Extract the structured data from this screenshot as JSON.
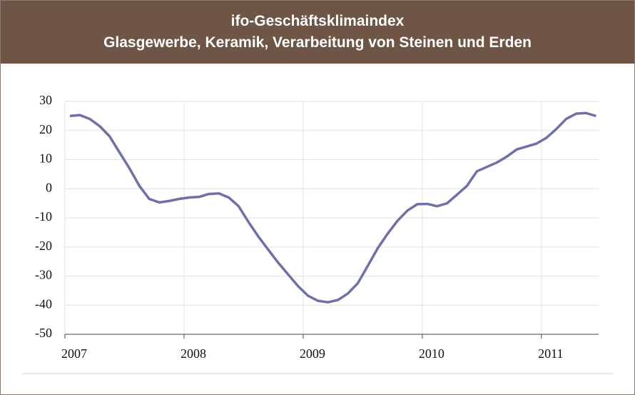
{
  "chart_data": {
    "type": "line",
    "title": "ifo-Geschäftsklimaindex",
    "subtitle": "Glasgewerbe, Keramik, Verarbeitung von Steinen und Erden",
    "x": [
      2007.042,
      2007.125,
      2007.208,
      2007.292,
      2007.375,
      2007.458,
      2007.542,
      2007.625,
      2007.708,
      2007.792,
      2007.875,
      2007.958,
      2008.042,
      2008.125,
      2008.208,
      2008.292,
      2008.375,
      2008.458,
      2008.542,
      2008.625,
      2008.708,
      2008.792,
      2008.875,
      2008.958,
      2009.042,
      2009.125,
      2009.208,
      2009.292,
      2009.375,
      2009.458,
      2009.542,
      2009.625,
      2009.708,
      2009.792,
      2009.875,
      2009.958,
      2010.042,
      2010.125,
      2010.208,
      2010.292,
      2010.375,
      2010.458,
      2010.542,
      2010.625,
      2010.708,
      2010.792,
      2010.875,
      2010.958,
      2011.042,
      2011.125,
      2011.208,
      2011.292,
      2011.375,
      2011.458
    ],
    "series": [
      {
        "color": "#6f70a8",
        "values": [
          25,
          25.3,
          24,
          21.5,
          18,
          12.5,
          7,
          1,
          -3.5,
          -4.7,
          -4.2,
          -3.5,
          -3,
          -2.8,
          -1.8,
          -1.6,
          -3,
          -6,
          -11.5,
          -16.5,
          -21,
          -25.5,
          -29.5,
          -33.5,
          -36.8,
          -38.5,
          -39,
          -38.2,
          -36,
          -32.5,
          -26.5,
          -20.5,
          -15.5,
          -11,
          -7.5,
          -5.3,
          -5.2,
          -6,
          -5,
          -2,
          1,
          6,
          7.5,
          9,
          11,
          13.5,
          14.5,
          15.5,
          17.5,
          20.5,
          24,
          25.8,
          26,
          25
        ]
      }
    ],
    "xlim": [
      2007,
      2011.48
    ],
    "xticks": [
      2007,
      2008,
      2009,
      2010,
      2011
    ],
    "ylim": [
      -50,
      30
    ],
    "yticks": [
      -50,
      -40,
      -30,
      -20,
      -10,
      0,
      10,
      20,
      30
    ],
    "grid": true
  }
}
